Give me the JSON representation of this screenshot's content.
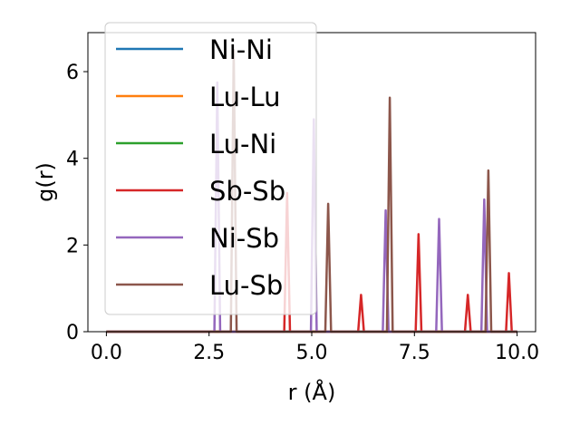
{
  "chart_data": {
    "type": "line",
    "xlabel": "r (Å)",
    "ylabel": "g(r)",
    "xlim": [
      -0.45,
      10.45
    ],
    "ylim": [
      0,
      6.9
    ],
    "xticks": [
      0.0,
      2.5,
      5.0,
      7.5,
      10.0
    ],
    "xtick_labels": [
      "0.0",
      "2.5",
      "5.0",
      "7.5",
      "10.0"
    ],
    "yticks": [
      0,
      2,
      4,
      6
    ],
    "ytick_labels": [
      "0",
      "2",
      "4",
      "6"
    ],
    "grid": false,
    "legend_position": "upper-left",
    "peak_half_width": 0.07,
    "series": [
      {
        "name": "Ni-Ni",
        "color": "#1f77b4",
        "peaks": []
      },
      {
        "name": "Lu-Lu",
        "color": "#ff7f0e",
        "peaks": []
      },
      {
        "name": "Lu-Ni",
        "color": "#2ca02c",
        "peaks": []
      },
      {
        "name": "Sb-Sb",
        "color": "#d62728",
        "peaks": [
          [
            4.4,
            3.2
          ],
          [
            6.2,
            0.85
          ],
          [
            7.6,
            2.25
          ],
          [
            8.8,
            0.85
          ],
          [
            9.8,
            1.35
          ]
        ]
      },
      {
        "name": "Ni-Sb",
        "color": "#9467bd",
        "peaks": [
          [
            2.7,
            5.75
          ],
          [
            5.05,
            4.9
          ],
          [
            6.8,
            2.8
          ],
          [
            8.1,
            2.6
          ],
          [
            9.2,
            3.05
          ]
        ]
      },
      {
        "name": "Lu-Sb",
        "color": "#8c564b",
        "peaks": [
          [
            3.1,
            6.5
          ],
          [
            5.4,
            2.95
          ],
          [
            6.9,
            5.4
          ],
          [
            9.3,
            3.72
          ]
        ]
      }
    ]
  }
}
